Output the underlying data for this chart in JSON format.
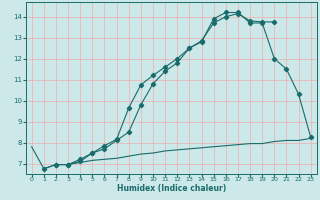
{
  "xlabel": "Humidex (Indice chaleur)",
  "bg_color": "#cce8e8",
  "grid_color": "#e8b8b8",
  "line_color": "#1a6b6b",
  "xlim": [
    -0.5,
    23.5
  ],
  "ylim": [
    6.5,
    14.7
  ],
  "xticks": [
    0,
    1,
    2,
    3,
    4,
    5,
    6,
    7,
    8,
    9,
    10,
    11,
    12,
    13,
    14,
    15,
    16,
    17,
    18,
    19,
    20,
    21,
    22,
    23
  ],
  "yticks": [
    7,
    8,
    9,
    10,
    11,
    12,
    13,
    14
  ],
  "curve_flat_x": [
    0,
    1,
    2,
    3,
    4,
    5,
    6,
    7,
    8,
    9,
    10,
    11,
    12,
    13,
    14,
    15,
    16,
    17,
    18,
    19,
    20,
    21,
    22,
    23
  ],
  "curve_flat_y": [
    7.8,
    6.75,
    6.95,
    6.95,
    7.05,
    7.15,
    7.2,
    7.25,
    7.35,
    7.45,
    7.5,
    7.6,
    7.65,
    7.7,
    7.75,
    7.8,
    7.85,
    7.9,
    7.95,
    7.95,
    8.05,
    8.1,
    8.1,
    8.2
  ],
  "curve_upper_x": [
    1,
    2,
    3,
    4,
    5,
    6,
    7,
    8,
    9,
    10,
    11,
    12,
    13,
    14,
    15,
    16,
    17,
    18,
    19,
    20,
    21,
    22,
    23
  ],
  "curve_upper_y": [
    6.75,
    6.95,
    6.95,
    7.1,
    7.5,
    7.7,
    8.1,
    8.5,
    9.8,
    10.8,
    11.4,
    11.8,
    12.5,
    12.8,
    13.9,
    14.2,
    14.2,
    13.7,
    13.7,
    12.0,
    11.5,
    10.3,
    8.25
  ],
  "curve_mid_x": [
    2,
    3,
    4,
    5,
    6,
    7,
    8,
    9,
    10,
    11,
    12,
    13,
    14,
    15,
    16,
    17,
    18,
    19,
    20
  ],
  "curve_mid_y": [
    6.95,
    6.95,
    7.2,
    7.5,
    7.85,
    8.15,
    9.65,
    10.75,
    11.2,
    11.6,
    12.0,
    12.5,
    12.85,
    13.7,
    14.0,
    14.15,
    13.8,
    13.75,
    13.75
  ]
}
